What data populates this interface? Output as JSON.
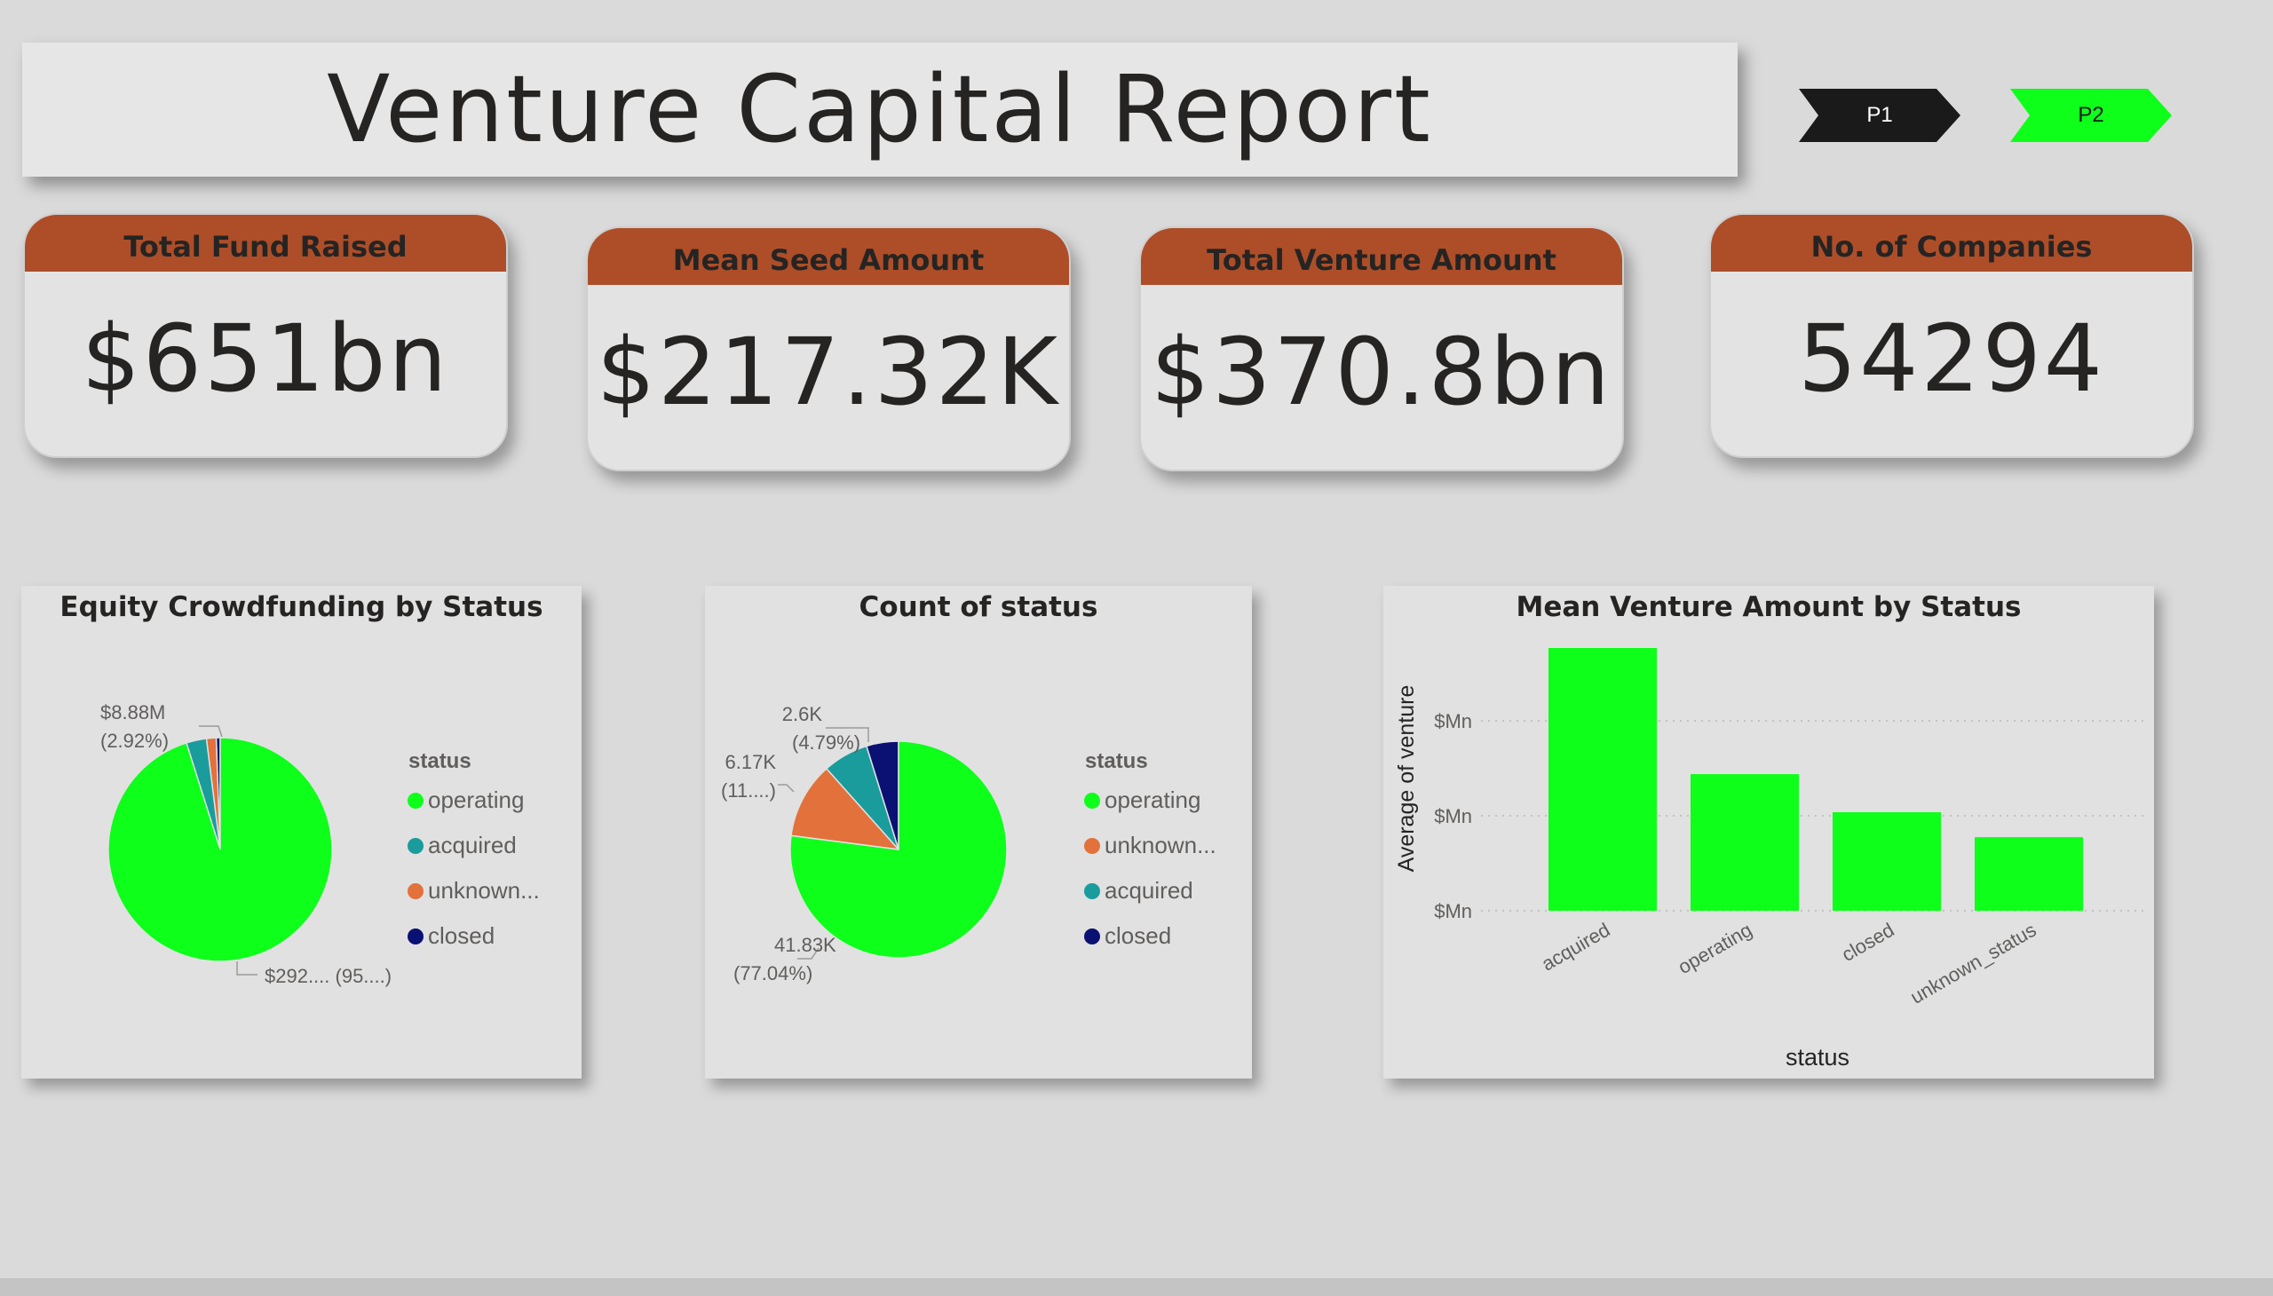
{
  "header": {
    "title": "Venture Capital Report"
  },
  "nav": [
    {
      "label": "P1",
      "color": "#1a1a1a",
      "text_color": "#ffffff"
    },
    {
      "label": "P2",
      "color": "#0dff1a",
      "text_color": "#1a1a1a"
    }
  ],
  "kpis": [
    {
      "label": "Total Fund Raised",
      "value": "$651bn"
    },
    {
      "label": "Mean Seed Amount",
      "value": "$217.32K"
    },
    {
      "label": "Total Venture Amount",
      "value": "$370.8bn"
    },
    {
      "label": "No. of Companies",
      "value": "54294"
    }
  ],
  "colors": {
    "operating": "#0dff1a",
    "acquired": "#1a9c9c",
    "unknown": "#e3713b",
    "closed": "#0a1172",
    "kpi_header": "#ad4e29"
  },
  "chart_data": [
    {
      "type": "pie",
      "title": "Equity Crowdfunding by Status",
      "legend_title": "status",
      "legend_position": "right",
      "legend": [
        "operating",
        "acquired",
        "unknown...",
        "closed"
      ],
      "slices": [
        {
          "name": "operating",
          "value": 95.11,
          "color": "#0dff1a"
        },
        {
          "name": "acquired",
          "value": 2.92,
          "color": "#1a9c9c"
        },
        {
          "name": "unknown...",
          "value": 1.4,
          "color": "#e3713b"
        },
        {
          "name": "closed",
          "value": 0.57,
          "color": "#0a1172"
        }
      ],
      "data_labels": [
        {
          "line1": "$8.88M",
          "line2": "(2.92%)"
        },
        {
          "line1": "$292.... (95....)",
          "line2": ""
        }
      ]
    },
    {
      "type": "pie",
      "title": "Count of status",
      "legend_title": "status",
      "legend_position": "right",
      "legend": [
        "operating",
        "unknown...",
        "acquired",
        "closed"
      ],
      "slices": [
        {
          "name": "operating",
          "value": 41830,
          "color": "#0dff1a"
        },
        {
          "name": "unknown...",
          "value": 6170,
          "color": "#e3713b"
        },
        {
          "name": "acquired",
          "value": 3690,
          "color": "#1a9c9c"
        },
        {
          "name": "closed",
          "value": 2600,
          "color": "#0a1172"
        }
      ],
      "data_labels": [
        {
          "line1": "2.6K",
          "line2": "(4.79%)"
        },
        {
          "line1": "6.17K",
          "line2": "(11....)"
        },
        {
          "line1": "41.83K",
          "line2": "(77.04%)"
        }
      ]
    },
    {
      "type": "bar",
      "title": "Mean Venture Amount by Status",
      "xlabel": "status",
      "ylabel": "Average of venture",
      "categories": [
        "acquired",
        "operating",
        "closed",
        "unknown_status"
      ],
      "values": [
        1.0,
        0.52,
        0.375,
        0.28
      ],
      "y_ticks": [
        "$Mn",
        "$Mn",
        "$Mn"
      ],
      "grid": true,
      "color": "#0dff1a"
    }
  ]
}
